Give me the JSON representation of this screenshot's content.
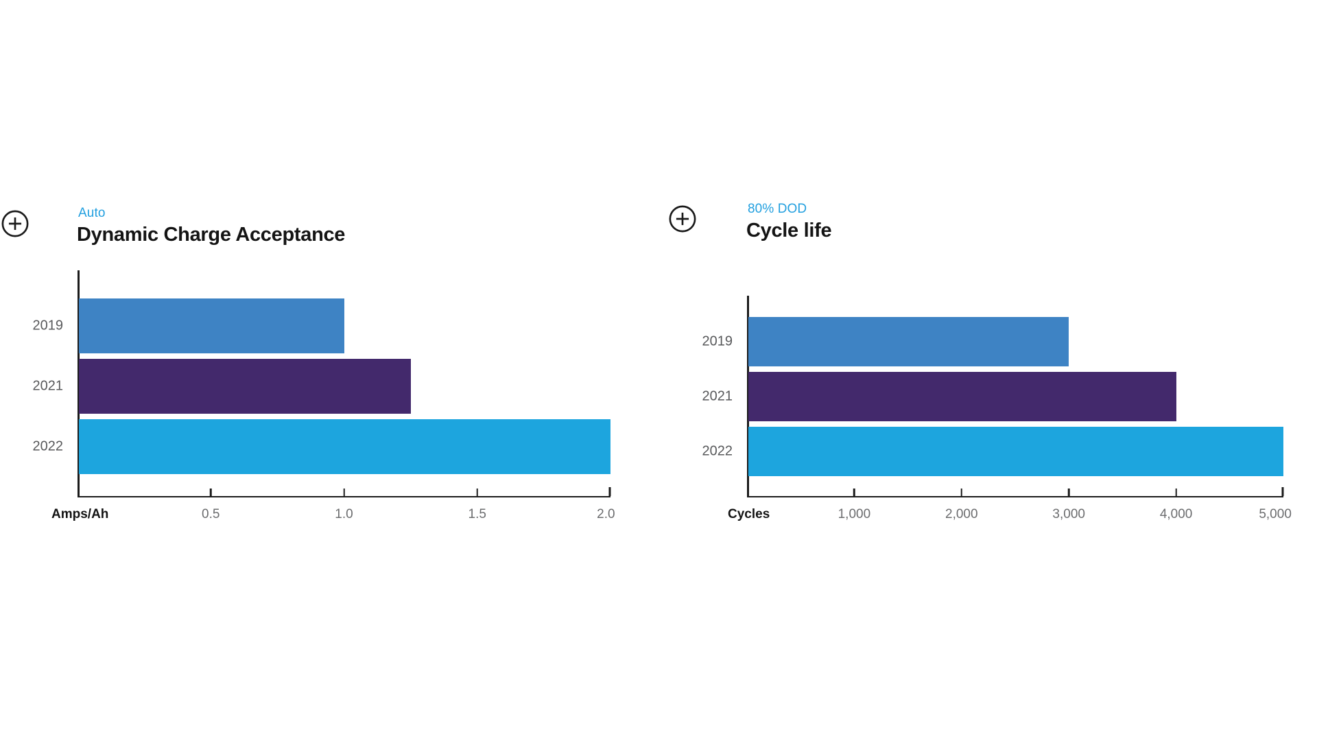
{
  "page": {
    "background": "#FFFFFF"
  },
  "colors": {
    "accent_blue_text": "#219FDF",
    "axis_line": "#1B1B1B",
    "category_label_gray": "#58595B",
    "tick_label_gray": "#6B6C6E",
    "title_black": "#141414",
    "bar_2019": "#3E83C4",
    "bar_2021": "#43296C",
    "bar_2022": "#1DA5DE"
  },
  "icons": {
    "expand_left": "plus-circle",
    "expand_right": "plus-circle"
  },
  "chart_data": [
    {
      "type": "bar",
      "orientation": "horizontal",
      "tag": "Auto",
      "title": "Dynamic Charge Acceptance",
      "xlabel": "Amps/Ah",
      "categories": [
        "2019",
        "2021",
        "2022"
      ],
      "values": [
        1.0,
        1.25,
        2.0
      ],
      "xlim": [
        0,
        2.0
      ],
      "xticks": [
        {
          "value": 0.5,
          "label": "0.5"
        },
        {
          "value": 1.0,
          "label": "1.0"
        },
        {
          "value": 1.5,
          "label": "1.5"
        },
        {
          "value": 2.0,
          "label": "2.0"
        }
      ],
      "bar_colors": [
        "#3E83C4",
        "#43296C",
        "#1DA5DE"
      ],
      "grid": false,
      "legend": false
    },
    {
      "type": "bar",
      "orientation": "horizontal",
      "tag": "80% DOD",
      "title": "Cycle life",
      "xlabel": "Cycles",
      "categories": [
        "2019",
        "2021",
        "2022"
      ],
      "values": [
        3000,
        4000,
        5000
      ],
      "xlim": [
        0,
        5000
      ],
      "xticks": [
        {
          "value": 1000,
          "label": "1,000"
        },
        {
          "value": 2000,
          "label": "2,000"
        },
        {
          "value": 3000,
          "label": "3,000"
        },
        {
          "value": 4000,
          "label": "4,000"
        },
        {
          "value": 5000,
          "label": "5,000"
        }
      ],
      "bar_colors": [
        "#3E83C4",
        "#43296C",
        "#1DA5DE"
      ],
      "grid": false,
      "legend": false
    }
  ]
}
